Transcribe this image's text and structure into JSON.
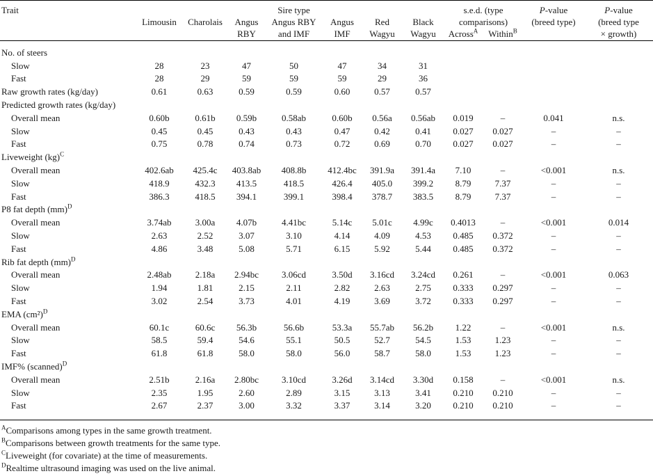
{
  "header": {
    "trait": "Trait",
    "sire_type": "Sire type",
    "limousin": "Limousin",
    "charolais": "Charolais",
    "angus_rby_1": "Angus",
    "angus_rby_2": "RBY",
    "angus_rby_imf_1": "Angus RBY",
    "angus_rby_imf_2": "and IMF",
    "angus_imf_1": "Angus",
    "angus_imf_2": "IMF",
    "red_wagyu_1": "Red",
    "red_wagyu_2": "Wagyu",
    "black_wagyu_1": "Black",
    "black_wagyu_2": "Wagyu",
    "sed_1": "s.e.d. (type",
    "sed_2": "comparisons)",
    "across": "Across",
    "across_sup": "A",
    "within": "Within",
    "within_sup": "B",
    "pval1_italic": "P",
    "pval1_rest": "-value",
    "pval1_2": "(breed type)",
    "pval2_italic": "P",
    "pval2_rest": "-value",
    "pval2_2": "(breed type",
    "pval2_3": "× growth)"
  },
  "rows": [
    {
      "label": "No. of steers",
      "sup": "",
      "sub": false,
      "cells": [
        "",
        "",
        "",
        "",
        "",
        "",
        "",
        "",
        "",
        "",
        ""
      ]
    },
    {
      "label": "Slow",
      "sup": "",
      "sub": true,
      "cells": [
        "28",
        "23",
        "47",
        "50",
        "47",
        "34",
        "31",
        "",
        "",
        "",
        ""
      ]
    },
    {
      "label": "Fast",
      "sup": "",
      "sub": true,
      "cells": [
        "28",
        "29",
        "59",
        "59",
        "59",
        "29",
        "36",
        "",
        "",
        "",
        ""
      ]
    },
    {
      "label": "Raw growth rates (kg/day)",
      "sup": "",
      "sub": false,
      "cells": [
        "0.61",
        "0.63",
        "0.59",
        "0.59",
        "0.60",
        "0.57",
        "0.57",
        "",
        "",
        "",
        ""
      ]
    },
    {
      "label": "Predicted growth rates (kg/day)",
      "sup": "",
      "sub": false,
      "cells": [
        "",
        "",
        "",
        "",
        "",
        "",
        "",
        "",
        "",
        "",
        ""
      ]
    },
    {
      "label": "Overall mean",
      "sup": "",
      "sub": true,
      "cells": [
        "0.60b",
        "0.61b",
        "0.59b",
        "0.58ab",
        "0.60b",
        "0.56a",
        "0.56ab",
        "0.019",
        "–",
        "0.041",
        "n.s."
      ]
    },
    {
      "label": "Slow",
      "sup": "",
      "sub": true,
      "cells": [
        "0.45",
        "0.45",
        "0.43",
        "0.43",
        "0.47",
        "0.42",
        "0.41",
        "0.027",
        "0.027",
        "–",
        "–"
      ]
    },
    {
      "label": "Fast",
      "sup": "",
      "sub": true,
      "cells": [
        "0.75",
        "0.78",
        "0.74",
        "0.73",
        "0.72",
        "0.69",
        "0.70",
        "0.027",
        "0.027",
        "–",
        "–"
      ]
    },
    {
      "label": "Liveweight (kg)",
      "sup": "C",
      "sub": false,
      "cells": [
        "",
        "",
        "",
        "",
        "",
        "",
        "",
        "",
        "",
        "",
        ""
      ]
    },
    {
      "label": "Overall mean",
      "sup": "",
      "sub": true,
      "cells": [
        "402.6ab",
        "425.4c",
        "403.8ab",
        "408.8b",
        "412.4bc",
        "391.9a",
        "391.4a",
        "7.10",
        "–",
        "<0.001",
        "n.s."
      ]
    },
    {
      "label": "Slow",
      "sup": "",
      "sub": true,
      "cells": [
        "418.9",
        "432.3",
        "413.5",
        "418.5",
        "426.4",
        "405.0",
        "399.2",
        "8.79",
        "7.37",
        "–",
        "–"
      ]
    },
    {
      "label": "Fast",
      "sup": "",
      "sub": true,
      "cells": [
        "386.3",
        "418.5",
        "394.1",
        "399.1",
        "398.4",
        "378.7",
        "383.5",
        "8.79",
        "7.37",
        "–",
        "–"
      ]
    },
    {
      "label": "P8 fat depth (mm)",
      "sup": "D",
      "sub": false,
      "cells": [
        "",
        "",
        "",
        "",
        "",
        "",
        "",
        "",
        "",
        "",
        ""
      ]
    },
    {
      "label": "Overall mean",
      "sup": "",
      "sub": true,
      "cells": [
        "3.74ab",
        "3.00a",
        "4.07b",
        "4.41bc",
        "5.14c",
        "5.01c",
        "4.99c",
        "0.4013",
        "–",
        "<0.001",
        "0.014"
      ]
    },
    {
      "label": "Slow",
      "sup": "",
      "sub": true,
      "cells": [
        "2.63",
        "2.52",
        "3.07",
        "3.10",
        "4.14",
        "4.09",
        "4.53",
        "0.485",
        "0.372",
        "–",
        "–"
      ]
    },
    {
      "label": "Fast",
      "sup": "",
      "sub": true,
      "cells": [
        "4.86",
        "3.48",
        "5.08",
        "5.71",
        "6.15",
        "5.92",
        "5.44",
        "0.485",
        "0.372",
        "–",
        "–"
      ]
    },
    {
      "label": "Rib fat depth (mm)",
      "sup": "D",
      "sub": false,
      "cells": [
        "",
        "",
        "",
        "",
        "",
        "",
        "",
        "",
        "",
        "",
        ""
      ]
    },
    {
      "label": "Overall mean",
      "sup": "",
      "sub": true,
      "cells": [
        "2.48ab",
        "2.18a",
        "2.94bc",
        "3.06cd",
        "3.50d",
        "3.16cd",
        "3.24cd",
        "0.261",
        "–",
        "<0.001",
        "0.063"
      ]
    },
    {
      "label": "Slow",
      "sup": "",
      "sub": true,
      "cells": [
        "1.94",
        "1.81",
        "2.15",
        "2.11",
        "2.82",
        "2.63",
        "2.75",
        "0.333",
        "0.297",
        "–",
        "–"
      ]
    },
    {
      "label": "Fast",
      "sup": "",
      "sub": true,
      "cells": [
        "3.02",
        "2.54",
        "3.73",
        "4.01",
        "4.19",
        "3.69",
        "3.72",
        "0.333",
        "0.297",
        "–",
        "–"
      ]
    },
    {
      "label": "EMA (cm²)",
      "sup": "D",
      "sub": false,
      "cells": [
        "",
        "",
        "",
        "",
        "",
        "",
        "",
        "",
        "",
        "",
        ""
      ]
    },
    {
      "label": "Overall mean",
      "sup": "",
      "sub": true,
      "cells": [
        "60.1c",
        "60.6c",
        "56.3b",
        "56.6b",
        "53.3a",
        "55.7ab",
        "56.2b",
        "1.22",
        "–",
        "<0.001",
        "n.s."
      ]
    },
    {
      "label": "Slow",
      "sup": "",
      "sub": true,
      "cells": [
        "58.5",
        "59.4",
        "54.6",
        "55.1",
        "50.5",
        "52.7",
        "54.5",
        "1.53",
        "1.23",
        "–",
        "–"
      ]
    },
    {
      "label": "Fast",
      "sup": "",
      "sub": true,
      "cells": [
        "61.8",
        "61.8",
        "58.0",
        "58.0",
        "56.0",
        "58.7",
        "58.0",
        "1.53",
        "1.23",
        "–",
        "–"
      ]
    },
    {
      "label": "IMF% (scanned)",
      "sup": "D",
      "sub": false,
      "cells": [
        "",
        "",
        "",
        "",
        "",
        "",
        "",
        "",
        "",
        "",
        ""
      ]
    },
    {
      "label": "Overall mean",
      "sup": "",
      "sub": true,
      "cells": [
        "2.51b",
        "2.16a",
        "2.80bc",
        "3.10cd",
        "3.26d",
        "3.14cd",
        "3.30d",
        "0.158",
        "–",
        "<0.001",
        "n.s."
      ]
    },
    {
      "label": "Slow",
      "sup": "",
      "sub": true,
      "cells": [
        "2.35",
        "1.95",
        "2.60",
        "2.89",
        "3.15",
        "3.13",
        "3.41",
        "0.210",
        "0.210",
        "–",
        "–"
      ]
    },
    {
      "label": "Fast",
      "sup": "",
      "sub": true,
      "cells": [
        "2.67",
        "2.37",
        "3.00",
        "3.32",
        "3.37",
        "3.14",
        "3.20",
        "0.210",
        "0.210",
        "–",
        "–"
      ]
    }
  ],
  "footnotes": [
    {
      "mark": "A",
      "text": "Comparisons among types in the same growth treatment."
    },
    {
      "mark": "B",
      "text": "Comparisons between growth treatments for the same type."
    },
    {
      "mark": "C",
      "text": "Liveweight (for covariate) at the time of measurements."
    },
    {
      "mark": "D",
      "text": "Realtime ultrasound imaging was used on the live animal."
    }
  ]
}
